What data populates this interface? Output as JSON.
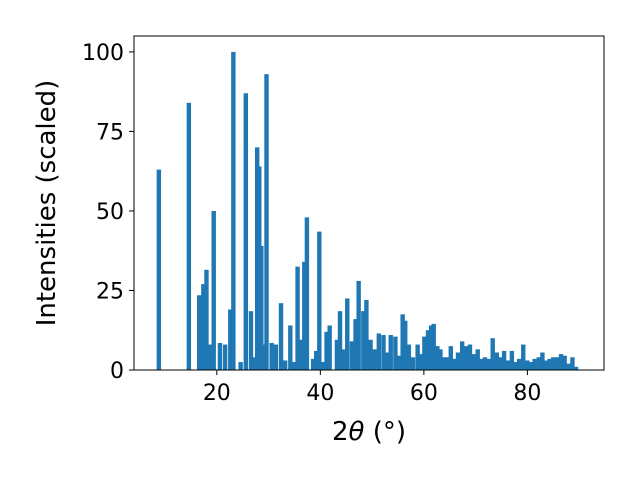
{
  "chart_data": {
    "type": "bar",
    "title": "",
    "xlabel_base": "2",
    "xlabel_symbol": "θ",
    "xlabel_units": " (°)",
    "ylabel": "Intensities (scaled)",
    "xlim": [
      4.0,
      94.8
    ],
    "ylim": [
      0,
      105
    ],
    "xticks": [
      20,
      40,
      60,
      80
    ],
    "yticks": [
      0,
      25,
      50,
      75,
      100
    ],
    "bar_color": "#1f77b4",
    "bar_width": 0.85,
    "grid": false,
    "x": [
      8.8,
      14.6,
      16.6,
      17.4,
      18.0,
      18.6,
      19.4,
      20.6,
      21.6,
      22.6,
      23.2,
      24.6,
      25.6,
      26.6,
      27.3,
      27.8,
      28.2,
      28.6,
      29.1,
      29.6,
      30.6,
      31.4,
      32.4,
      33.2,
      34.2,
      35.0,
      35.6,
      36.4,
      36.9,
      37.4,
      38.6,
      39.2,
      39.8,
      40.6,
      41.2,
      41.8,
      43.2,
      43.8,
      44.6,
      45.2,
      46.1,
      46.8,
      47.4,
      48.3,
      48.9,
      49.7,
      50.5,
      51.3,
      52.2,
      53.0,
      53.6,
      54.5,
      55.2,
      55.9,
      56.4,
      57.1,
      57.9,
      58.8,
      59.4,
      60.1,
      60.8,
      61.4,
      61.9,
      62.6,
      63.2,
      63.9,
      64.6,
      65.2,
      65.9,
      66.6,
      67.4,
      68.2,
      68.9,
      69.6,
      70.4,
      71.1,
      71.8,
      72.6,
      73.3,
      74.1,
      74.8,
      75.5,
      76.2,
      77.0,
      77.8,
      78.4,
      79.2,
      80.0,
      80.8,
      81.4,
      82.2,
      82.9,
      83.6,
      84.3,
      85.0,
      85.8,
      86.5,
      87.2,
      88.0,
      88.7,
      89.4
    ],
    "values": [
      63,
      84,
      23.5,
      27,
      31.5,
      8,
      50,
      8.5,
      8,
      19,
      100,
      2.5,
      87,
      18.5,
      4,
      70,
      64,
      39,
      8,
      93,
      8.5,
      8,
      21,
      3,
      14,
      2.5,
      32.5,
      9.5,
      34,
      48,
      3.5,
      6,
      43.5,
      2.5,
      12,
      14,
      9.5,
      18.5,
      6.5,
      22.5,
      9,
      16,
      28,
      18.5,
      22,
      9.5,
      6.5,
      11.5,
      11,
      5.5,
      11,
      10.5,
      4.5,
      17.5,
      15.5,
      8,
      4,
      8,
      5,
      10.5,
      12.5,
      14,
      14.5,
      7.5,
      6.5,
      4,
      4,
      7.5,
      3.5,
      5.5,
      9,
      7.5,
      8,
      5,
      6.5,
      3.5,
      4,
      3.5,
      10,
      5.5,
      4,
      6,
      3,
      6,
      2.5,
      3.5,
      8,
      3,
      2.5,
      3.5,
      4,
      5.5,
      3,
      3.5,
      4,
      4,
      5,
      4.5,
      2,
      4,
      1
    ]
  }
}
